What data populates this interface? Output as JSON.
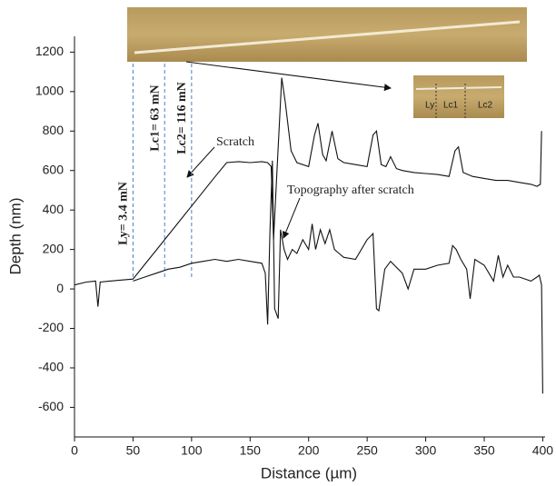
{
  "chart_data": {
    "type": "line",
    "xlabel": "Distance (µm)",
    "ylabel": "Depth (nm)",
    "xlim": [
      0,
      402
    ],
    "ylim": [
      -750,
      1280
    ],
    "xticks": [
      0,
      50,
      100,
      150,
      200,
      250,
      300,
      350,
      400
    ],
    "yticks": [
      -600,
      -400,
      -200,
      0,
      200,
      400,
      600,
      800,
      1000,
      1200
    ],
    "series": [
      {
        "name": "Scratch",
        "color": "#111111",
        "x": [
          0,
          10,
          18,
          20,
          22,
          30,
          40,
          50,
          60,
          70,
          80,
          90,
          100,
          110,
          120,
          130,
          140,
          150,
          160,
          165,
          168,
          170,
          173,
          177,
          180,
          185,
          190,
          200,
          205,
          208,
          212,
          215,
          220,
          225,
          230,
          240,
          250,
          255,
          258,
          262,
          266,
          270,
          275,
          280,
          290,
          300,
          310,
          320,
          325,
          328,
          332,
          340,
          350,
          360,
          370,
          380,
          390,
          395,
          398,
          399
        ],
        "values": [
          20,
          35,
          40,
          -90,
          35,
          40,
          45,
          50,
          124,
          198,
          272,
          346,
          420,
          494,
          568,
          640,
          645,
          640,
          645,
          640,
          620,
          250,
          600,
          1070,
          950,
          700,
          640,
          620,
          780,
          840,
          680,
          650,
          800,
          660,
          640,
          630,
          620,
          780,
          800,
          630,
          620,
          670,
          610,
          600,
          590,
          585,
          580,
          570,
          700,
          720,
          590,
          570,
          560,
          550,
          550,
          540,
          530,
          520,
          530,
          800
        ]
      },
      {
        "name": "Topography after scratch",
        "color": "#111111",
        "x": [
          50,
          60,
          70,
          80,
          90,
          100,
          110,
          120,
          130,
          140,
          150,
          160,
          163,
          165,
          167,
          169,
          171,
          174,
          176,
          179,
          182,
          186,
          190,
          195,
          200,
          203,
          206,
          210,
          214,
          218,
          222,
          226,
          230,
          240,
          250,
          255,
          258,
          260,
          265,
          270,
          280,
          285,
          290,
          300,
          310,
          320,
          323,
          326,
          330,
          335,
          338,
          342,
          350,
          358,
          362,
          366,
          370,
          375,
          380,
          390,
          395,
          397,
          399,
          400
        ],
        "values": [
          40,
          60,
          80,
          100,
          110,
          130,
          140,
          150,
          140,
          150,
          140,
          130,
          80,
          -180,
          300,
          650,
          -100,
          -150,
          300,
          200,
          150,
          200,
          180,
          250,
          200,
          330,
          200,
          300,
          230,
          300,
          200,
          180,
          160,
          150,
          250,
          280,
          -100,
          -110,
          100,
          140,
          80,
          0,
          100,
          100,
          120,
          130,
          220,
          200,
          150,
          100,
          -50,
          150,
          120,
          40,
          170,
          60,
          120,
          60,
          60,
          40,
          60,
          70,
          20,
          -530
        ]
      }
    ],
    "markers": [
      {
        "label": "Ly= 3.4 mN",
        "x": 50
      },
      {
        "label": "Lc1= 63 mN",
        "x": 77
      },
      {
        "label": "Lc2= 116 mN",
        "x": 100
      }
    ],
    "marker_color": "#4a7fc1",
    "inset_labels": [
      "Ly",
      "Lc1",
      "Lc2"
    ]
  }
}
